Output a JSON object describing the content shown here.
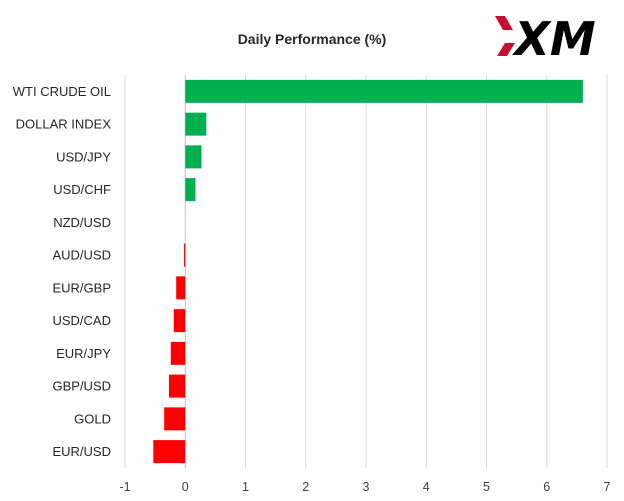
{
  "logo": {
    "text": "XM",
    "colors": {
      "x_accent": "#c8102e",
      "body": "#000000"
    }
  },
  "chart_data": {
    "type": "bar",
    "orientation": "horizontal",
    "title": "Daily Performance  (%)",
    "xlabel": "",
    "ylabel": "",
    "categories": [
      "WTI CRUDE OIL",
      "DOLLAR INDEX",
      "USD/JPY",
      "USD/CHF",
      "NZD/USD",
      "AUD/USD",
      "EUR/GBP",
      "USD/CAD",
      "EUR/JPY",
      "GBP/USD",
      "GOLD",
      "EUR/USD"
    ],
    "values": [
      6.6,
      0.35,
      0.27,
      0.17,
      0.0,
      -0.02,
      -0.15,
      -0.19,
      -0.24,
      -0.27,
      -0.35,
      -0.53
    ],
    "xlim": [
      -1,
      7
    ],
    "xticks": [
      -1,
      0,
      1,
      2,
      3,
      4,
      5,
      6,
      7
    ],
    "colors": {
      "positive": "#00b050",
      "negative": "#ff0000"
    },
    "grid": true,
    "legend": "none"
  }
}
